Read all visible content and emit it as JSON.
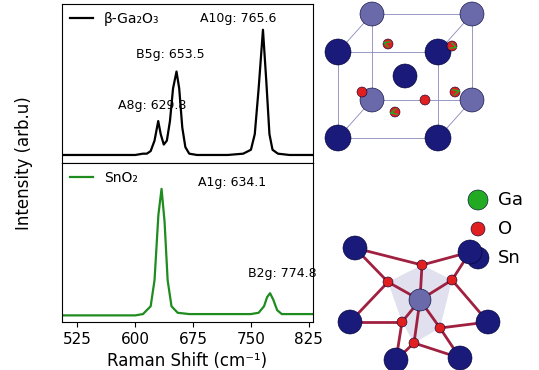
{
  "chart_data": [
    {
      "type": "line",
      "y_label": "Intensity (arb.u)",
      "x": [
        505,
        520,
        540,
        560,
        580,
        600,
        610,
        615,
        620,
        625,
        629.8,
        633,
        637,
        641,
        645,
        649,
        653.5,
        657,
        661,
        665,
        670,
        680,
        700,
        720,
        740,
        750,
        755,
        760,
        765.6,
        770,
        774,
        778,
        785,
        800,
        815,
        830
      ],
      "series": [
        {
          "name": "β-Ga₂O₃",
          "color": "#000000",
          "values": [
            0.04,
            0.04,
            0.04,
            0.04,
            0.04,
            0.04,
            0.05,
            0.05,
            0.07,
            0.15,
            0.3,
            0.2,
            0.12,
            0.15,
            0.3,
            0.55,
            0.68,
            0.55,
            0.25,
            0.1,
            0.05,
            0.04,
            0.04,
            0.04,
            0.05,
            0.08,
            0.2,
            0.55,
            1.0,
            0.6,
            0.2,
            0.08,
            0.05,
            0.04,
            0.04,
            0.04
          ]
        }
      ],
      "annotations": [
        "A8g: 629.8",
        "B5g: 653.5",
        "A10g: 765.6"
      ],
      "xlim": [
        505,
        830
      ],
      "xticks": [
        525,
        600,
        675,
        750,
        825
      ],
      "ylim": [
        -0.02,
        1.2
      ],
      "legend": "upper left",
      "tick_labels": false
    },
    {
      "type": "line",
      "x_label": "Raman Shift (cm⁻¹)",
      "x": [
        505,
        520,
        540,
        560,
        580,
        600,
        610,
        620,
        625,
        630,
        634.1,
        638,
        642,
        647,
        655,
        670,
        700,
        730,
        750,
        760,
        767,
        771,
        774.8,
        779,
        784,
        790,
        800,
        815,
        830
      ],
      "series": [
        {
          "name": "SnO₂",
          "color": "#1e8c1e",
          "values": [
            0.03,
            0.03,
            0.03,
            0.03,
            0.03,
            0.03,
            0.04,
            0.1,
            0.3,
            0.8,
            1.0,
            0.75,
            0.3,
            0.1,
            0.05,
            0.04,
            0.04,
            0.04,
            0.04,
            0.05,
            0.1,
            0.17,
            0.2,
            0.15,
            0.07,
            0.04,
            0.04,
            0.04,
            0.04
          ]
        }
      ],
      "annotations": [
        "A1g: 634.1",
        "B2g: 774.8"
      ],
      "xlim": [
        505,
        830
      ],
      "xticks": [
        525,
        600,
        675,
        750,
        825
      ],
      "ylim": [
        -0.02,
        1.2
      ],
      "legend": "upper left",
      "tick_labels": "x"
    }
  ],
  "atom_legend": [
    {
      "label": "Ga",
      "color": "#22aa22"
    },
    {
      "label": "O",
      "color": "#e02020"
    },
    {
      "label": "Sn",
      "color": "#1a1a7a"
    }
  ]
}
